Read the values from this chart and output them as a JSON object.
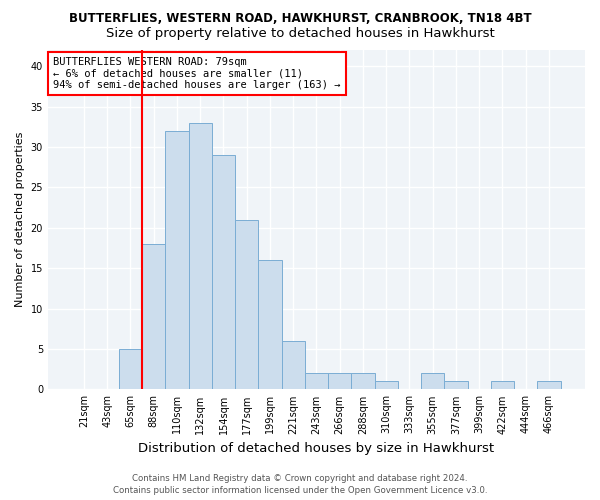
{
  "title1": "BUTTERFLIES, WESTERN ROAD, HAWKHURST, CRANBROOK, TN18 4BT",
  "title2": "Size of property relative to detached houses in Hawkhurst",
  "xlabel": "Distribution of detached houses by size in Hawkhurst",
  "ylabel": "Number of detached properties",
  "bar_labels": [
    "21sqm",
    "43sqm",
    "65sqm",
    "88sqm",
    "110sqm",
    "132sqm",
    "154sqm",
    "177sqm",
    "199sqm",
    "221sqm",
    "243sqm",
    "266sqm",
    "288sqm",
    "310sqm",
    "333sqm",
    "355sqm",
    "377sqm",
    "399sqm",
    "422sqm",
    "444sqm",
    "466sqm"
  ],
  "bar_values": [
    0,
    0,
    5,
    18,
    32,
    33,
    29,
    21,
    16,
    6,
    2,
    2,
    2,
    1,
    0,
    2,
    1,
    0,
    1,
    0,
    1
  ],
  "bar_color": "#ccdded",
  "bar_edge_color": "#7aadd4",
  "grid_color": "#d5dce6",
  "vline_color": "red",
  "vline_pos": 2.5,
  "annotation_text": "BUTTERFLIES WESTERN ROAD: 79sqm\n← 6% of detached houses are smaller (11)\n94% of semi-detached houses are larger (163) →",
  "annotation_box_color": "white",
  "annotation_box_edge_color": "red",
  "ylim": [
    0,
    42
  ],
  "yticks": [
    0,
    5,
    10,
    15,
    20,
    25,
    30,
    35,
    40
  ],
  "footer1": "Contains HM Land Registry data © Crown copyright and database right 2024.",
  "footer2": "Contains public sector information licensed under the Open Government Licence v3.0.",
  "title1_fontsize": 8.5,
  "title2_fontsize": 9.5,
  "xlabel_fontsize": 9.5,
  "ylabel_fontsize": 8,
  "tick_fontsize": 7,
  "annotation_fontsize": 7.5,
  "footer_fontsize": 6.2,
  "bg_color": "#f0f4f8"
}
